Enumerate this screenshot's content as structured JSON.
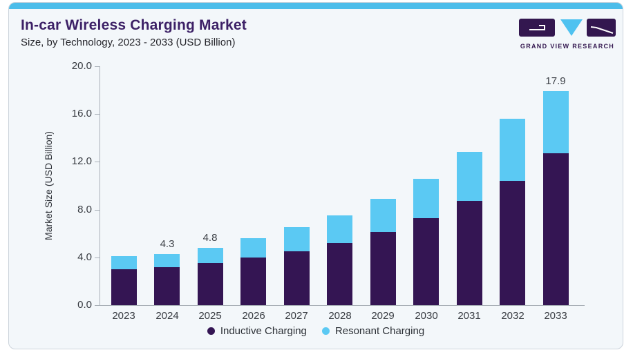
{
  "header": {
    "title": "In-car Wireless Charging Market",
    "subtitle": "Size, by Technology, 2023 - 2033 (USD Billion)"
  },
  "logo": {
    "text": "GRAND VIEW RESEARCH"
  },
  "colors": {
    "accent_strip": "#4cbdea",
    "card_background": "#f3f7fa",
    "title_text": "#3c2066",
    "inductive": "#341553",
    "resonant": "#5bc9f3"
  },
  "chart_data": {
    "type": "bar",
    "stacked": true,
    "title": "In-car Wireless Charging Market Size, by Technology, 2023 - 2033 (USD Billion)",
    "categories": [
      "2023",
      "2024",
      "2025",
      "2026",
      "2027",
      "2028",
      "2029",
      "2030",
      "2031",
      "2032",
      "2033"
    ],
    "series": [
      {
        "name": "Inductive Charging",
        "color": "#341553",
        "values": [
          3.0,
          3.2,
          3.5,
          4.0,
          4.5,
          5.2,
          6.1,
          7.3,
          8.7,
          10.4,
          12.7
        ]
      },
      {
        "name": "Resonant Charging",
        "color": "#5bc9f3",
        "values": [
          1.1,
          1.1,
          1.3,
          1.6,
          2.0,
          2.3,
          2.8,
          3.3,
          4.1,
          5.2,
          5.2
        ]
      }
    ],
    "totals": [
      4.1,
      4.3,
      4.8,
      5.6,
      6.5,
      7.5,
      8.9,
      10.6,
      12.8,
      15.6,
      17.9
    ],
    "bar_labels": {
      "2024": "4.3",
      "2025": "4.8",
      "2033": "17.9"
    },
    "xlabel": "",
    "ylabel": "Market Size (USD Billion)",
    "yticks": [
      "0.0",
      "4.0",
      "8.0",
      "12.0",
      "16.0",
      "20.0"
    ],
    "ylim": [
      0,
      20
    ],
    "grid": false,
    "legend_position": "bottom"
  }
}
